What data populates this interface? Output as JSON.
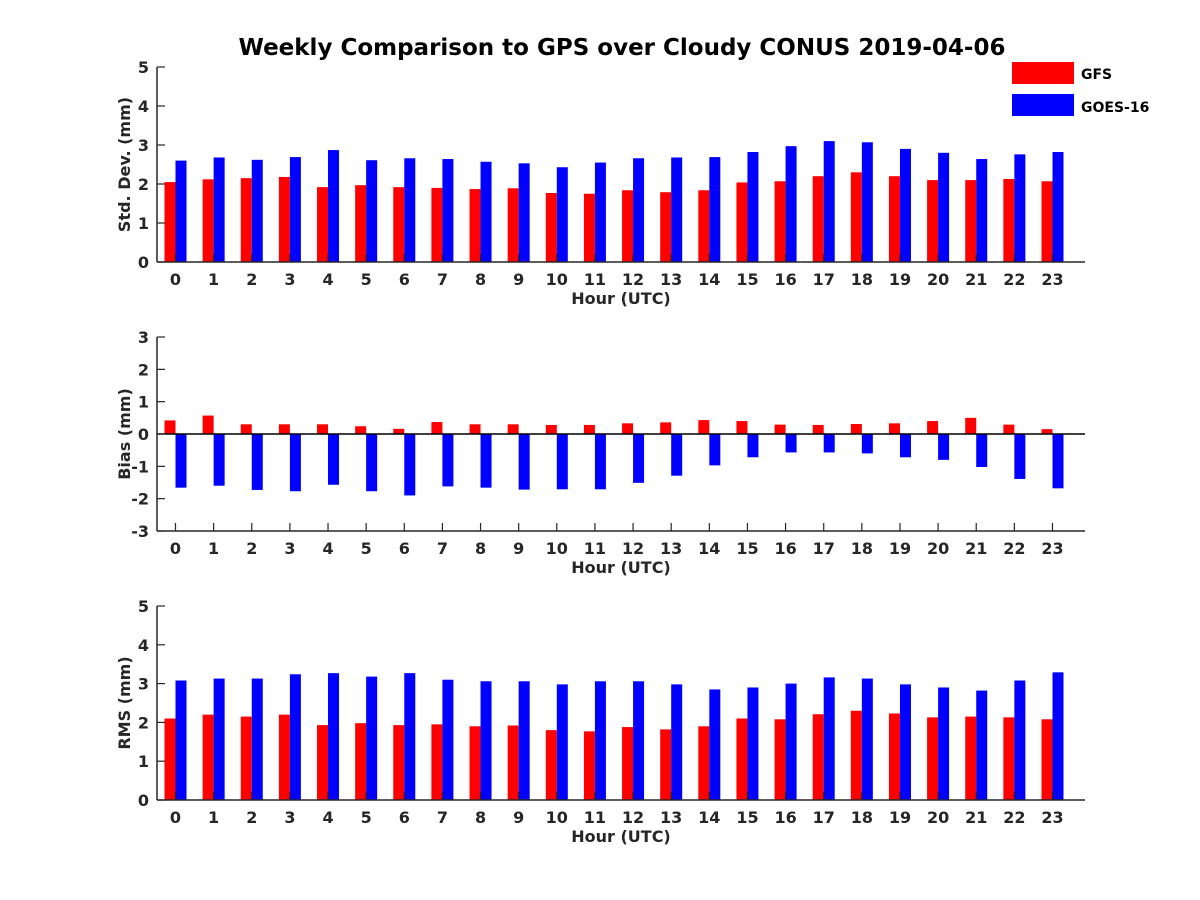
{
  "title": "Weekly Comparison to GPS over Cloudy CONUS 2019-04-06",
  "legend": {
    "placement": "top-right",
    "items": [
      {
        "label": "GFS",
        "color": "#ff0000"
      },
      {
        "label": "GOES-16",
        "color": "#0000ff"
      }
    ]
  },
  "chart_data": [
    {
      "type": "bar",
      "xlabel": "Hour (UTC)",
      "ylabel": "Std. Dev. (mm)",
      "ylim": [
        0,
        5
      ],
      "yticks": [
        0,
        1,
        2,
        3,
        4,
        5
      ],
      "categories": [
        "0",
        "1",
        "2",
        "3",
        "4",
        "5",
        "6",
        "7",
        "8",
        "9",
        "10",
        "11",
        "12",
        "13",
        "14",
        "15",
        "16",
        "17",
        "18",
        "19",
        "20",
        "21",
        "22",
        "23"
      ],
      "series": [
        {
          "name": "GFS",
          "color": "#ff0000",
          "values": [
            2.05,
            2.12,
            2.15,
            2.18,
            1.92,
            1.97,
            1.92,
            1.9,
            1.87,
            1.89,
            1.77,
            1.75,
            1.84,
            1.79,
            1.84,
            2.04,
            2.07,
            2.2,
            2.3,
            2.2,
            2.1,
            2.1,
            2.13,
            2.07
          ]
        },
        {
          "name": "GOES-16",
          "color": "#0000ff",
          "values": [
            2.6,
            2.68,
            2.62,
            2.69,
            2.87,
            2.61,
            2.66,
            2.64,
            2.57,
            2.53,
            2.43,
            2.55,
            2.66,
            2.68,
            2.69,
            2.82,
            2.97,
            3.1,
            3.07,
            2.9,
            2.8,
            2.64,
            2.76,
            2.82
          ]
        }
      ]
    },
    {
      "type": "bar",
      "xlabel": "Hour (UTC)",
      "ylabel": "Bias (mm)",
      "ylim": [
        -3,
        3
      ],
      "yticks": [
        -3,
        -2,
        -1,
        0,
        1,
        2,
        3
      ],
      "categories": [
        "0",
        "1",
        "2",
        "3",
        "4",
        "5",
        "6",
        "7",
        "8",
        "9",
        "10",
        "11",
        "12",
        "13",
        "14",
        "15",
        "16",
        "17",
        "18",
        "19",
        "20",
        "21",
        "22",
        "23"
      ],
      "series": [
        {
          "name": "GFS",
          "color": "#ff0000",
          "values": [
            0.42,
            0.57,
            0.3,
            0.3,
            0.3,
            0.24,
            0.16,
            0.37,
            0.3,
            0.3,
            0.28,
            0.28,
            0.33,
            0.36,
            0.43,
            0.4,
            0.29,
            0.28,
            0.31,
            0.33,
            0.4,
            0.5,
            0.29,
            0.15
          ]
        },
        {
          "name": "GOES-16",
          "color": "#0000ff",
          "values": [
            -1.66,
            -1.6,
            -1.73,
            -1.77,
            -1.57,
            -1.77,
            -1.9,
            -1.62,
            -1.66,
            -1.72,
            -1.71,
            -1.71,
            -1.51,
            -1.29,
            -0.97,
            -0.72,
            -0.57,
            -0.57,
            -0.6,
            -0.72,
            -0.8,
            -1.02,
            -1.39,
            -1.68
          ]
        }
      ]
    },
    {
      "type": "bar",
      "xlabel": "Hour (UTC)",
      "ylabel": "RMS (mm)",
      "ylim": [
        0,
        5
      ],
      "yticks": [
        0,
        1,
        2,
        3,
        4,
        5
      ],
      "categories": [
        "0",
        "1",
        "2",
        "3",
        "4",
        "5",
        "6",
        "7",
        "8",
        "9",
        "10",
        "11",
        "12",
        "13",
        "14",
        "15",
        "16",
        "17",
        "18",
        "19",
        "20",
        "21",
        "22",
        "23"
      ],
      "series": [
        {
          "name": "GFS",
          "color": "#ff0000",
          "values": [
            2.1,
            2.2,
            2.15,
            2.2,
            1.93,
            1.98,
            1.93,
            1.95,
            1.9,
            1.92,
            1.8,
            1.77,
            1.88,
            1.82,
            1.9,
            2.1,
            2.08,
            2.21,
            2.3,
            2.23,
            2.13,
            2.15,
            2.13,
            2.08
          ]
        },
        {
          "name": "GOES-16",
          "color": "#0000ff",
          "values": [
            3.08,
            3.13,
            3.13,
            3.24,
            3.27,
            3.18,
            3.27,
            3.1,
            3.06,
            3.06,
            2.98,
            3.06,
            3.06,
            2.98,
            2.85,
            2.9,
            3.0,
            3.16,
            3.13,
            2.98,
            2.9,
            2.82,
            3.08,
            3.29
          ]
        }
      ]
    }
  ]
}
